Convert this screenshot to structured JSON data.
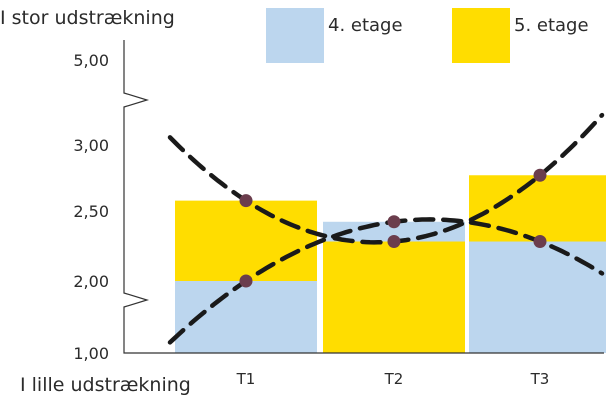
{
  "chart_data": {
    "type": "bar",
    "ylabel_top": "I stor udstrækning",
    "ylabel_bottom": "I lille udstrækning",
    "categories": [
      "T1",
      "T2",
      "T3"
    ],
    "y_ticks": [
      "1,00",
      "2,00",
      "2,50",
      "3,00",
      "5,00"
    ],
    "axis_break": true,
    "legend_position": "top",
    "series": [
      {
        "name": "4. etage",
        "color": "#bcd6ee",
        "values": [
          2.0,
          2.42,
          2.28
        ]
      },
      {
        "name": "5. etage",
        "color": "#ffdd00",
        "values": [
          2.57,
          2.28,
          2.75
        ]
      }
    ],
    "trend_lines": [
      {
        "style": "dashed",
        "through": [
          2.0,
          2.42,
          2.28
        ]
      },
      {
        "style": "dashed",
        "through": [
          2.57,
          2.28,
          2.75
        ]
      }
    ],
    "marker_color": "#6b3d4d"
  }
}
